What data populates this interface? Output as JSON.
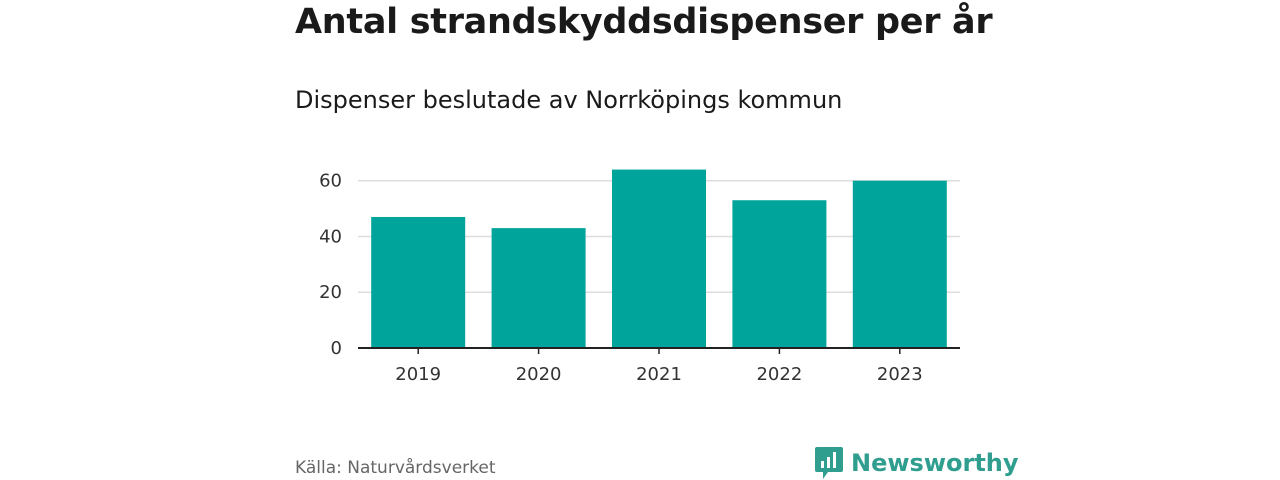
{
  "title": "Antal strandskyddsdispenser per år",
  "subtitle": "Dispenser beslutade av Norrköpings kommun",
  "source": "Källa: Naturvårdsverket",
  "brand": {
    "name": "Newsworthy",
    "icon": "bar-chart-speech-bubble-icon"
  },
  "colors": {
    "bar": "#00a49a",
    "brand": "#2f9e8f",
    "grid": "#dddddd",
    "axis": "#222222"
  },
  "chart_data": {
    "type": "bar",
    "title": "Antal strandskyddsdispenser per år",
    "subtitle": "Dispenser beslutade av Norrköpings kommun",
    "categories": [
      "2019",
      "2020",
      "2021",
      "2022",
      "2023"
    ],
    "values": [
      47,
      43,
      64,
      53,
      60
    ],
    "xlabel": "",
    "ylabel": "",
    "ylim": [
      0,
      66
    ],
    "yticks": [
      0,
      20,
      40,
      60
    ],
    "grid": true,
    "legend": "none"
  }
}
